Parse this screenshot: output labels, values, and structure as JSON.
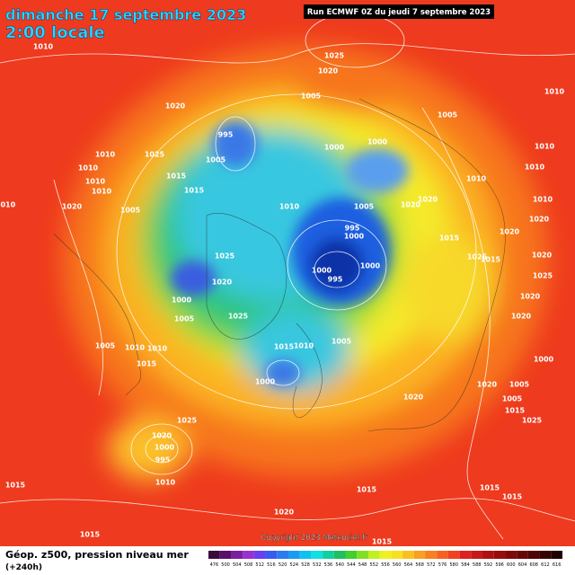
{
  "header": {
    "date": "dimanche 17 septembre 2023",
    "time": "2:00 locale",
    "run": "Run ECMWF 0Z du jeudi 7 septembre 2023"
  },
  "footer": {
    "title": "Géop. z500, pression niveau mer",
    "lead": "(+240h)",
    "copyright": "Copyright 2023 Meteociel.fr"
  },
  "scale": {
    "labels": [
      "476",
      "500",
      "504",
      "508",
      "512",
      "516",
      "520",
      "524",
      "528",
      "532",
      "536",
      "540",
      "544",
      "548",
      "552",
      "556",
      "560",
      "564",
      "568",
      "572",
      "576",
      "580",
      "584",
      "588",
      "592",
      "596",
      "600",
      "604",
      "608",
      "612",
      "616"
    ]
  },
  "map": {
    "isobar_labels": [
      "1010",
      "1025",
      "1020",
      "1005",
      "1010",
      "1020",
      "1005",
      "995",
      "1000",
      "1000",
      "1010",
      "1010",
      "1025",
      "1005",
      "1010",
      "1010",
      "1010",
      "1015",
      "1015",
      "1010",
      "1010",
      "1010",
      "1020",
      "1020",
      "1005",
      "1010",
      "1005",
      "1020",
      "1010",
      "995",
      "1000",
      "1015",
      "1020",
      "1025",
      "1020",
      "1025",
      "1015",
      "1020",
      "1000",
      "995",
      "1000",
      "1020",
      "1000",
      "1005",
      "1025",
      "1025",
      "1020",
      "1020",
      "1005",
      "1010",
      "1010",
      "1015",
      "1010",
      "1005",
      "1015",
      "1000",
      "1000",
      "1020",
      "1005",
      "1020",
      "1005",
      "1015",
      "1025",
      "1025",
      "1020",
      "1000",
      "995",
      "1010",
      "1015",
      "1015",
      "1015",
      "1015",
      "1020",
      "1015",
      "1015"
    ]
  }
}
